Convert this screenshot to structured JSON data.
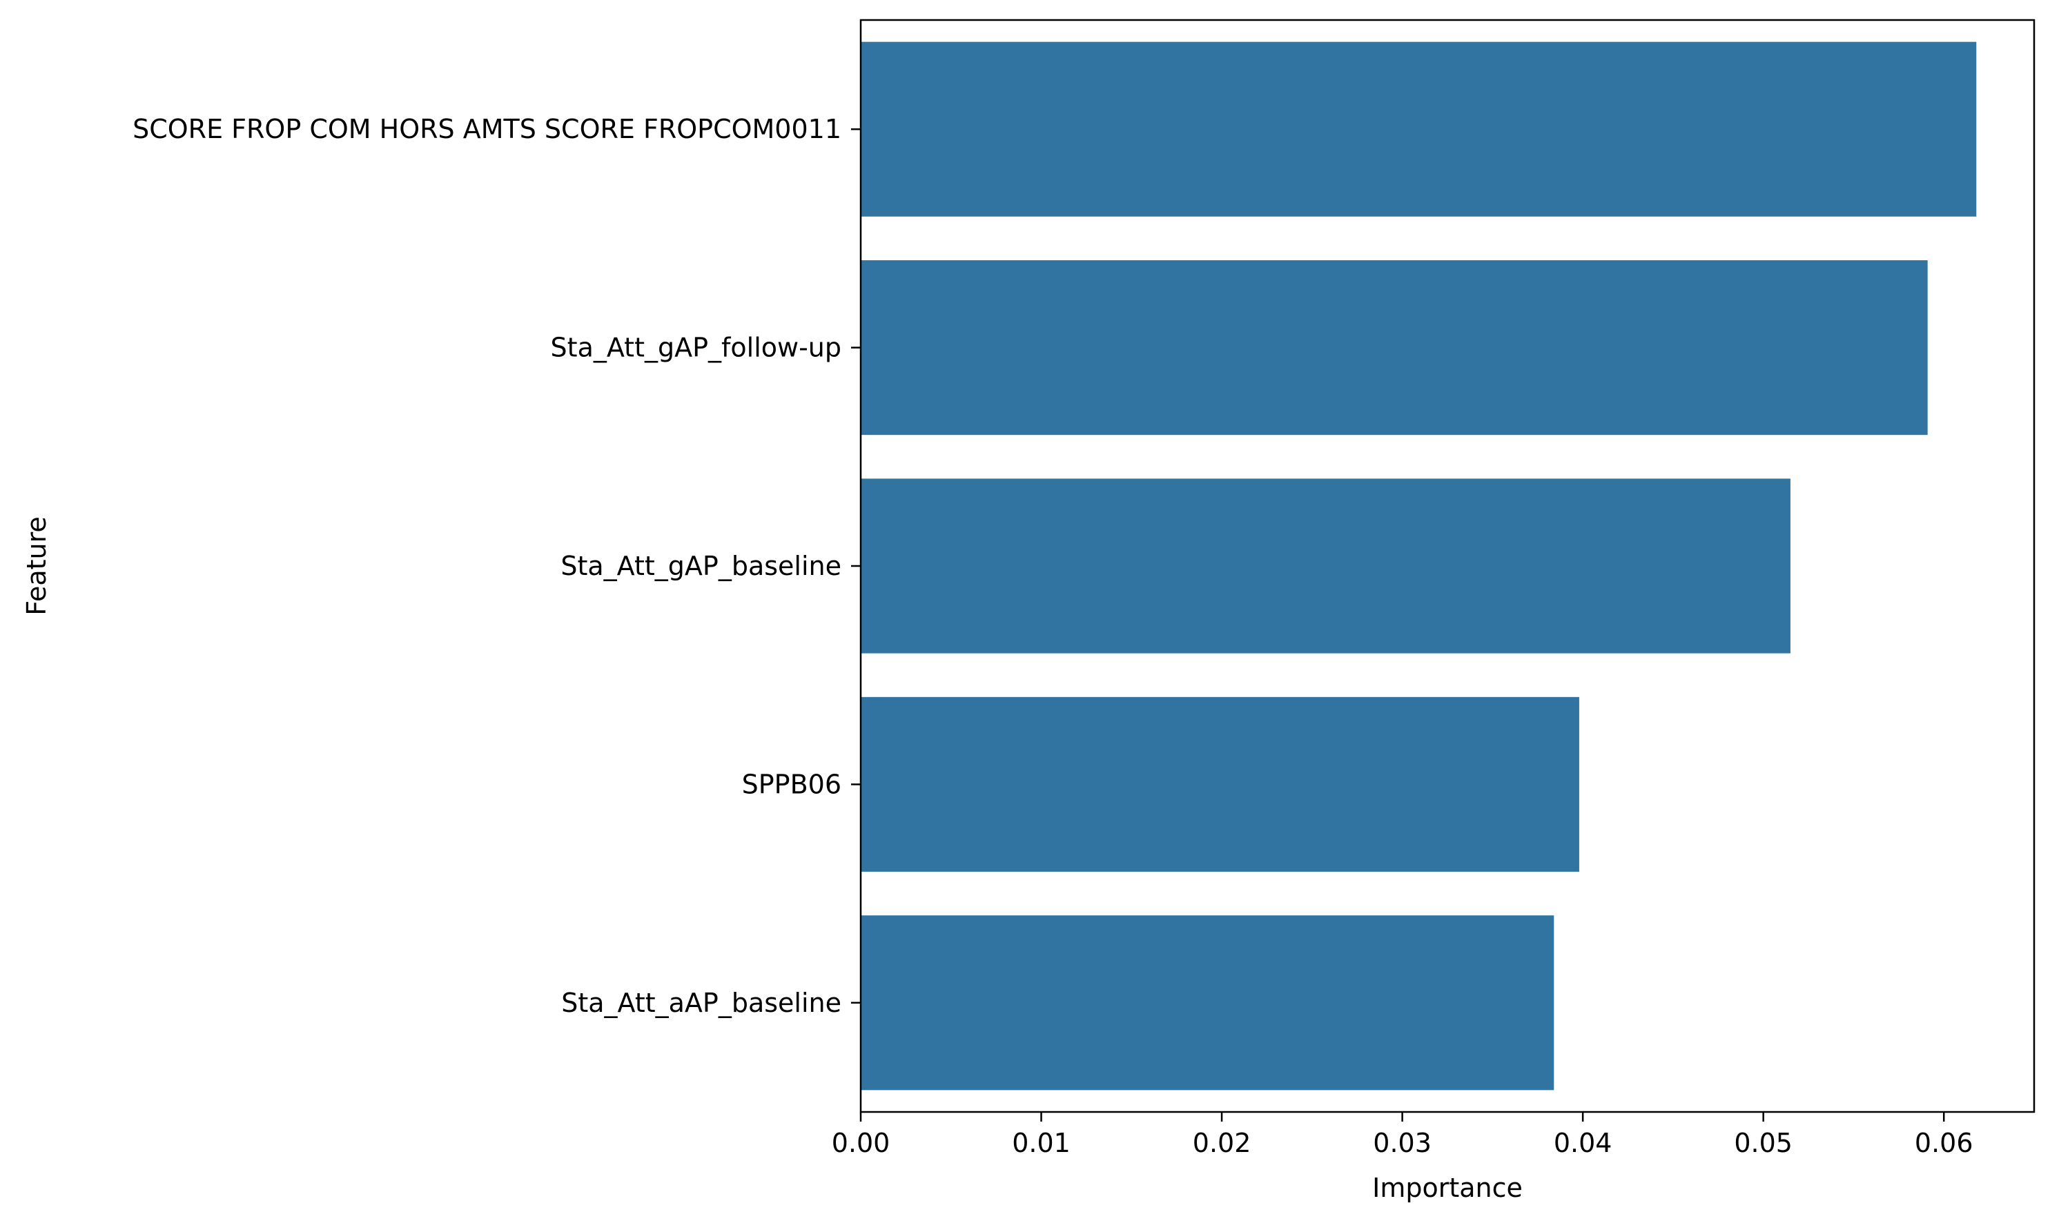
{
  "chart_data": {
    "type": "bar",
    "orientation": "horizontal",
    "categories": [
      "SCORE FROP COM HORS AMTS SCORE FROPCOM0011",
      "Sta_Att_gAP_follow-up",
      "Sta_Att_gAP_baseline",
      "SPPB06",
      "Sta_Att_aAP_baseline"
    ],
    "values": [
      0.0618,
      0.0591,
      0.0515,
      0.0398,
      0.0384
    ],
    "xlabel": "Importance",
    "ylabel": "Feature",
    "xlim": [
      0,
      0.065
    ],
    "xticks": [
      0.0,
      0.01,
      0.02,
      0.03,
      0.04,
      0.05,
      0.06
    ],
    "xtick_labels": [
      "0.00",
      "0.01",
      "0.02",
      "0.03",
      "0.04",
      "0.05",
      "0.06"
    ],
    "grid": false,
    "bar_color": "#3274a1"
  }
}
